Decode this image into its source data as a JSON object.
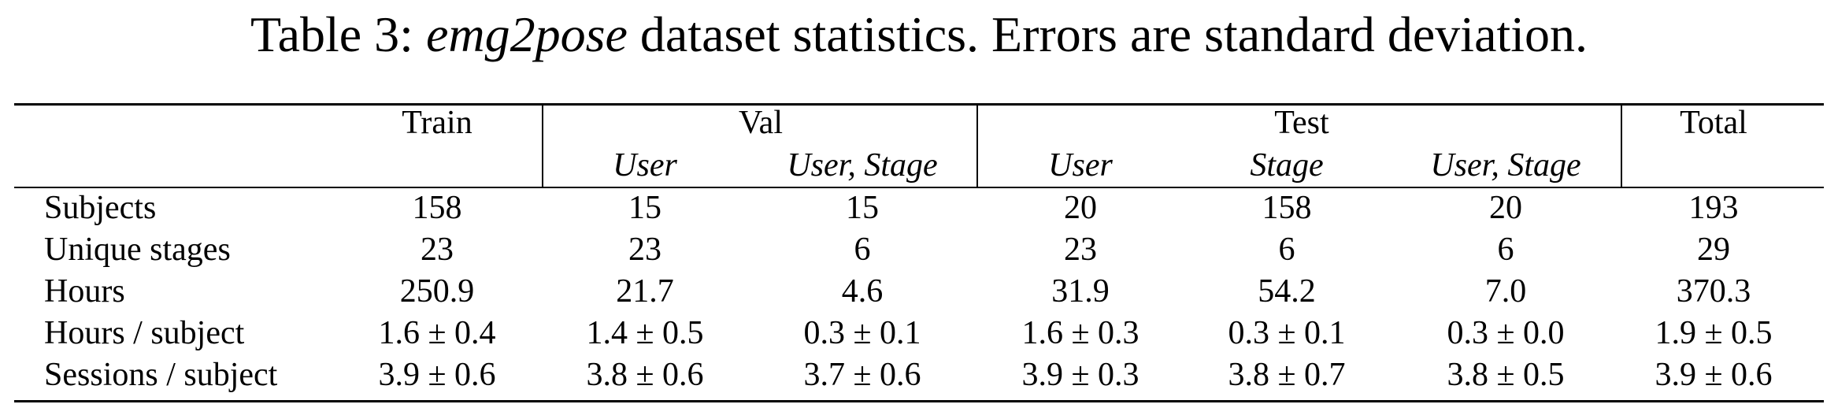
{
  "caption": {
    "prefix": "Table 3: ",
    "italic": "emg2pose",
    "rest": " dataset statistics. Errors are standard deviation."
  },
  "header": {
    "groups": [
      "Train",
      "Val",
      "Test",
      "Total"
    ],
    "subs": [
      "User",
      "User, Stage",
      "User",
      "Stage",
      "User, Stage"
    ]
  },
  "rows": [
    {
      "label": "Subjects",
      "values": [
        "158",
        "15",
        "15",
        "20",
        "158",
        "20",
        "193"
      ]
    },
    {
      "label": "Unique stages",
      "values": [
        "23",
        "23",
        "6",
        "23",
        "6",
        "6",
        "29"
      ]
    },
    {
      "label": "Hours",
      "values": [
        "250.9",
        "21.7",
        "4.6",
        "31.9",
        "54.2",
        "7.0",
        "370.3"
      ]
    },
    {
      "label": "Hours / subject",
      "values": [
        "1.6 ± 0.4",
        "1.4 ± 0.5",
        "0.3 ± 0.1",
        "1.6 ± 0.3",
        "0.3 ± 0.1",
        "0.3 ± 0.0",
        "1.9 ± 0.5"
      ]
    },
    {
      "label": "Sessions / subject",
      "values": [
        "3.9 ± 0.6",
        "3.8 ± 0.6",
        "3.7 ± 0.6",
        "3.9 ± 0.3",
        "3.8 ± 0.7",
        "3.8 ± 0.5",
        "3.9 ± 0.6"
      ]
    }
  ]
}
